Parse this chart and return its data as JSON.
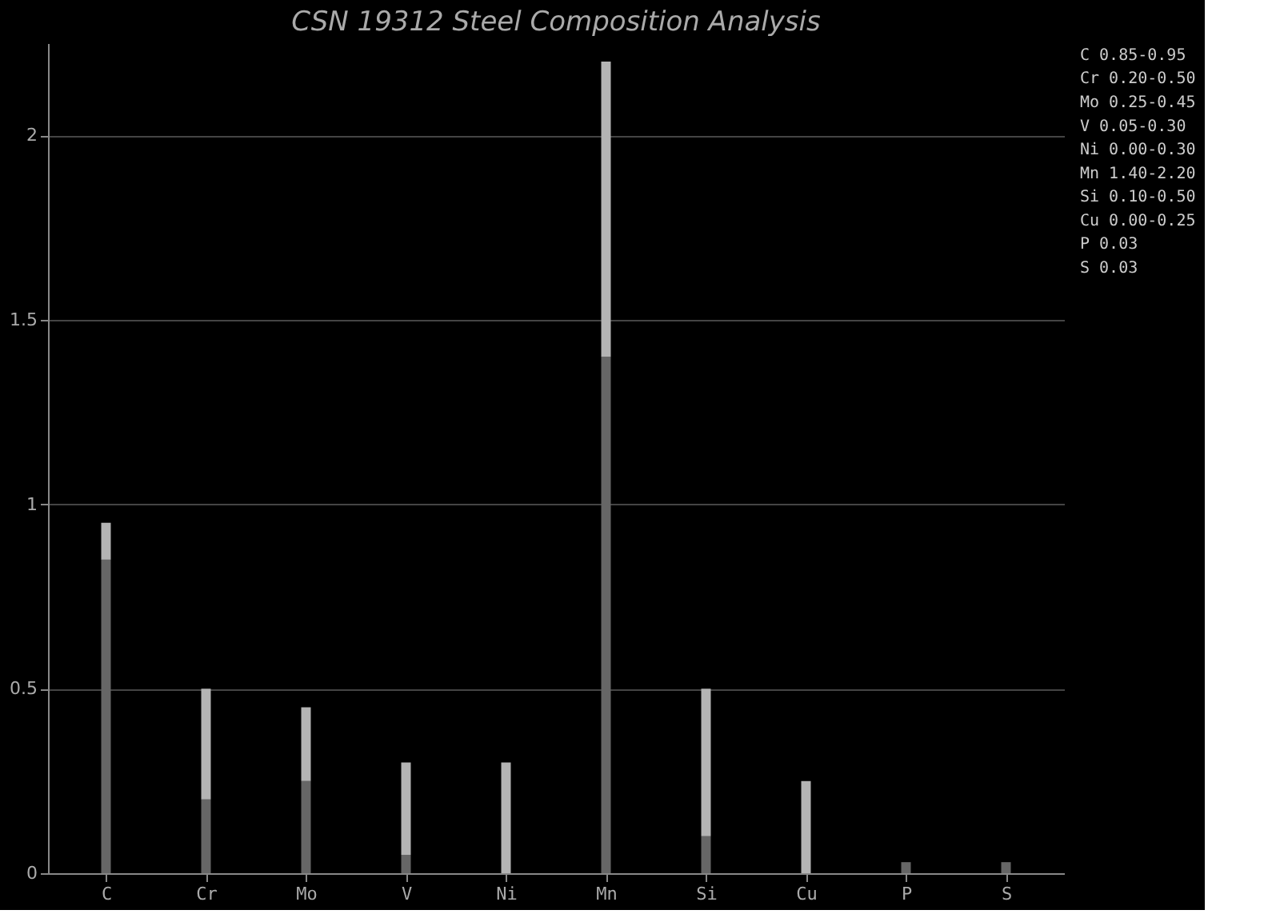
{
  "chart_data": {
    "type": "bar",
    "title": "CSN 19312 Steel Composition Analysis",
    "stacked": true,
    "categories": [
      "C",
      "Cr",
      "Mo",
      "V",
      "Ni",
      "Mn",
      "Si",
      "Cu",
      "P",
      "S"
    ],
    "series": [
      {
        "color": "#666666",
        "values": [
          0.85,
          0.2,
          0.25,
          0.05,
          0.0,
          1.4,
          0.1,
          0.0,
          0.03,
          0.03
        ]
      },
      {
        "color": "#b4b4b4",
        "values": [
          0.1,
          0.3,
          0.2,
          0.25,
          0.3,
          0.8,
          0.4,
          0.25,
          0.0,
          0.0
        ]
      }
    ],
    "ylim": [
      0,
      2.25
    ],
    "yticks": [
      0,
      0.5,
      1,
      1.5,
      2
    ],
    "grid": "y",
    "annotations": [
      "C  0.85-0.95",
      "Cr 0.20-0.50",
      "Mo 0.25-0.45",
      "V  0.05-0.30",
      "Ni 0.00-0.30",
      "Mn 1.40-2.20",
      "Si 0.10-0.50",
      "Cu 0.00-0.25",
      "P  0.03",
      "S  0.03"
    ]
  }
}
